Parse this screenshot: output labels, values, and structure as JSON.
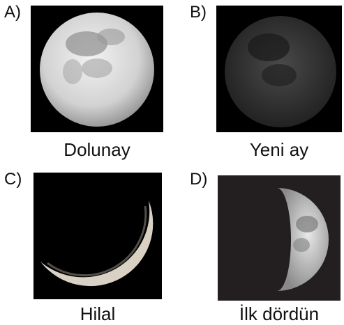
{
  "options": [
    {
      "letter": "A)",
      "caption": "Dolunay"
    },
    {
      "letter": "B)",
      "caption": "Yeni ay"
    },
    {
      "letter": "C)",
      "caption": "Hilal"
    },
    {
      "letter": "D)",
      "caption": "İlk dördün"
    }
  ]
}
